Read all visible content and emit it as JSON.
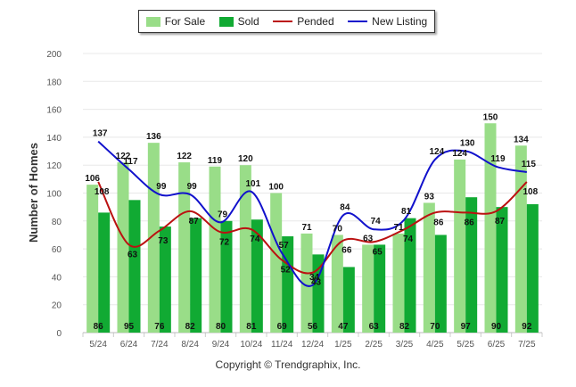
{
  "legend": {
    "for_sale": "For Sale",
    "sold": "Sold",
    "pended": "Pended",
    "new_listing": "New Listing"
  },
  "copyright": "Copyright © Trendgraphix, Inc.",
  "colors": {
    "for_sale": "#99dd88",
    "sold": "#11aa33",
    "pended": "#bb1111",
    "new_listing": "#1111cc",
    "grid": "#e8e8e8",
    "axis_text": "#555555"
  },
  "chart_data": {
    "type": "bar",
    "ylabel": "Number of Homes",
    "xlabel": "",
    "ylim": [
      0,
      200
    ],
    "yticks": [
      0,
      20,
      40,
      60,
      80,
      100,
      120,
      140,
      160,
      180,
      200
    ],
    "grid": true,
    "legend_position": "top-center",
    "categories": [
      "5/24",
      "6/24",
      "7/24",
      "8/24",
      "9/24",
      "10/24",
      "11/24",
      "12/24",
      "1/25",
      "2/25",
      "3/25",
      "4/25",
      "5/25",
      "6/25",
      "7/25"
    ],
    "series": [
      {
        "name": "For Sale",
        "type": "bar",
        "values": [
          106,
          122,
          136,
          122,
          119,
          120,
          100,
          71,
          70,
          63,
          71,
          93,
          124,
          150,
          134
        ]
      },
      {
        "name": "Sold",
        "type": "bar",
        "values": [
          86,
          95,
          76,
          82,
          80,
          81,
          69,
          56,
          47,
          63,
          82,
          70,
          97,
          90,
          92
        ]
      },
      {
        "name": "Pended",
        "type": "line",
        "values": [
          108,
          63,
          73,
          87,
          72,
          74,
          52,
          43,
          66,
          65,
          74,
          86,
          86,
          87,
          108
        ]
      },
      {
        "name": "New Listing",
        "type": "line",
        "values": [
          137,
          117,
          99,
          99,
          79,
          101,
          57,
          34,
          84,
          74,
          81,
          124,
          130,
          119,
          115
        ]
      }
    ]
  }
}
